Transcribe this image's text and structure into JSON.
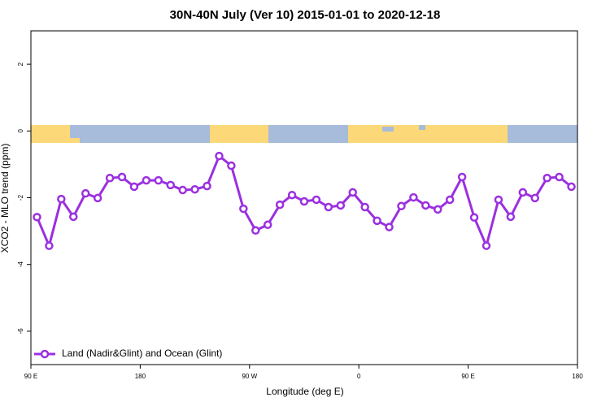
{
  "chart_data": {
    "type": "line",
    "title": "30N-40N July (Ver 10)   2015-01-01 to 2020-12-18",
    "xlabel": "Longitude (deg E)",
    "ylabel": "XCO2 - MLO trend (ppm)",
    "x": [
      95,
      105,
      115,
      125,
      135,
      145,
      155,
      165,
      175,
      185,
      195,
      205,
      215,
      225,
      235,
      245,
      255,
      265,
      275,
      285,
      295,
      305,
      315,
      325,
      335,
      345,
      355,
      365,
      375,
      385,
      395,
      405,
      415,
      425,
      435,
      445,
      455,
      465,
      475,
      485,
      495,
      505,
      515,
      525,
      535
    ],
    "series": [
      {
        "name": "Land (Nadir&Glint) and Ocean (Glint)",
        "color": "#9b30e0",
        "values": [
          -2.58,
          -3.44,
          -2.04,
          -2.57,
          -1.87,
          -2.01,
          -1.41,
          -1.38,
          -1.67,
          -1.48,
          -1.48,
          -1.62,
          -1.77,
          -1.75,
          -1.65,
          -0.75,
          -1.04,
          -2.33,
          -2.98,
          -2.81,
          -2.21,
          -1.92,
          -2.11,
          -2.06,
          -2.28,
          -2.23,
          -1.84,
          -2.28,
          -2.69,
          -2.88,
          -2.25,
          -1.99,
          -2.23,
          -2.35,
          -2.06,
          -1.38,
          -2.59,
          -3.44,
          -2.06,
          -2.57,
          -1.84,
          -2.01,
          -1.41,
          -1.38,
          -1.67
        ]
      }
    ],
    "xlim": [
      90,
      540
    ],
    "xticks": [
      {
        "value": 90,
        "label": "90 E"
      },
      180,
      {
        "value": 270,
        "label": "90 W"
      },
      {
        "value": 360,
        "label": "0"
      },
      {
        "value": 450,
        "label": "90 E"
      },
      {
        "value": 540,
        "label": "180"
      }
    ],
    "ylim": [
      -7,
      3
    ],
    "yticks": [
      -6,
      -4,
      -2,
      0,
      2
    ],
    "legend": "bottom-left"
  }
}
